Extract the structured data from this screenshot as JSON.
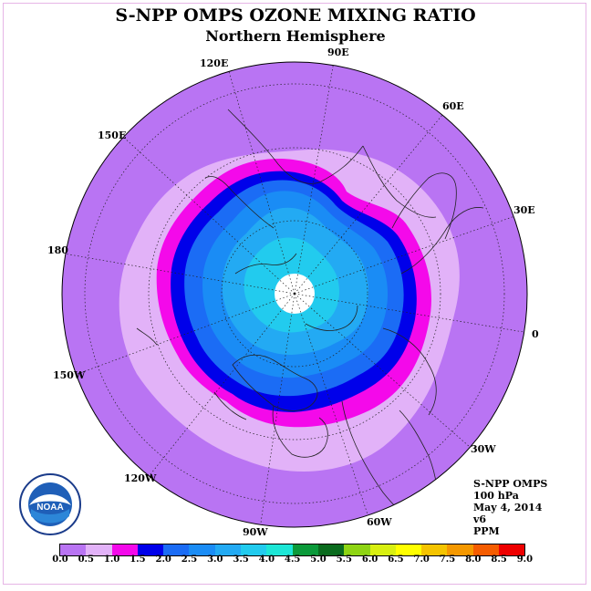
{
  "title": "S-NPP OMPS OZONE MIXING RATIO",
  "subtitle": "Northern Hemisphere",
  "longitude_labels": {
    "e120": "120E",
    "e90": "90E",
    "e60": "60E",
    "e30": "30E",
    "zero": "0",
    "w30": "30W",
    "w60": "60W",
    "w90": "90W",
    "w120": "120W",
    "w150": "150W",
    "deg180": "180",
    "e150": "150E"
  },
  "info": {
    "instrument": "S-NPP OMPS",
    "level": "100 hPa",
    "date": "May 4, 2014",
    "version": "v6",
    "units": "PPM"
  },
  "colorbar": {
    "ticks": [
      "0.0",
      "0.5",
      "1.0",
      "1.5",
      "2.0",
      "2.5",
      "3.0",
      "3.5",
      "4.0",
      "4.5",
      "5.0",
      "5.5",
      "6.0",
      "6.5",
      "7.0",
      "7.5",
      "8.0",
      "8.5",
      "9.0"
    ],
    "colors": [
      "#b974f3",
      "#e2b2f8",
      "#f409ea",
      "#0000ea",
      "#1b6cf5",
      "#1a8cf5",
      "#23aaf3",
      "#22cbee",
      "#1de6d6",
      "#0b9a3a",
      "#0a6b1e",
      "#8ed413",
      "#d8ef11",
      "#ffff00",
      "#f5c400",
      "#f59800",
      "#f55c00",
      "#ee0000",
      "#8b5a2b"
    ]
  },
  "map_colors": {
    "background": "#b974f3",
    "band_05": "#e2b2f8",
    "band_10": "#f409ea",
    "band_15": "#0000ea",
    "band_20": "#1b6cf5",
    "band_25": "#1a8cf5",
    "band_30": "#23aaf3",
    "band_35": "#22cbee",
    "pole_gap": "#ffffff"
  },
  "logo": {
    "text": "NOAA"
  }
}
